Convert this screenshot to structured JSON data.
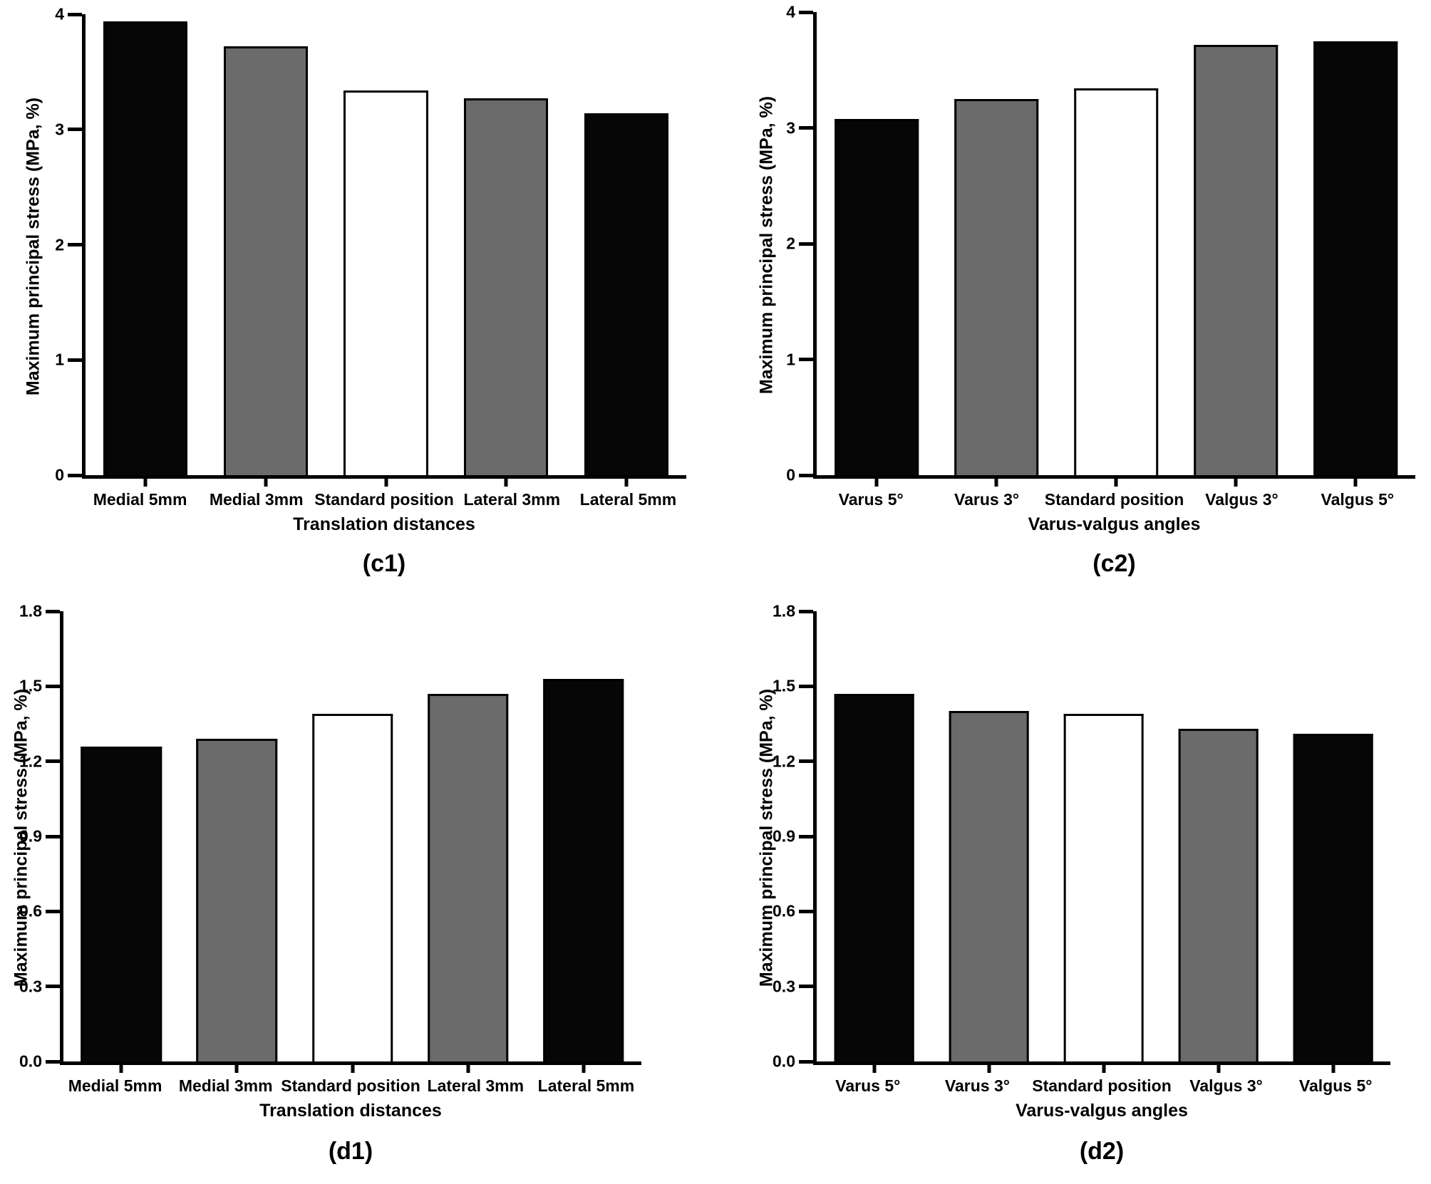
{
  "figure": {
    "background": "#ffffff",
    "bar_border_color": "#000000",
    "bar_fill_colors": {
      "black": "#060606",
      "gray": "#6b6b6b",
      "white": "#ffffff"
    }
  },
  "chart_data": [
    {
      "id": "c1",
      "type": "bar",
      "caption": "(c1)",
      "xlabel": "Translation distances",
      "ylabel": "Maximum principal stress (MPa, %)",
      "categories": [
        "Medial 5mm",
        "Medial 3mm",
        "Standard position",
        "Lateral 3mm",
        "Lateral 5mm"
      ],
      "values": [
        3.94,
        3.72,
        3.34,
        3.27,
        3.14
      ],
      "bar_fills": [
        "black",
        "gray",
        "white",
        "gray",
        "black"
      ],
      "ylim": [
        0,
        4
      ],
      "yticks": [
        0,
        1,
        2,
        3,
        4
      ],
      "ytick_labels": [
        "0",
        "1",
        "2",
        "3",
        "4"
      ],
      "grid": false,
      "legend": null
    },
    {
      "id": "c2",
      "type": "bar",
      "caption": "(c2)",
      "xlabel": "Varus-valgus angles",
      "ylabel": "Maximum principal stress (MPa, %)",
      "categories": [
        "Varus 5°",
        "Varus 3°",
        "Standard position",
        "Valgus 3°",
        "Valgus 5°"
      ],
      "values": [
        3.08,
        3.25,
        3.34,
        3.72,
        3.75
      ],
      "bar_fills": [
        "black",
        "gray",
        "white",
        "gray",
        "black"
      ],
      "ylim": [
        0,
        4
      ],
      "yticks": [
        0,
        1,
        2,
        3,
        4
      ],
      "ytick_labels": [
        "0",
        "1",
        "2",
        "3",
        "4"
      ],
      "grid": false,
      "legend": null
    },
    {
      "id": "d1",
      "type": "bar",
      "caption": "(d1)",
      "xlabel": "Translation distances",
      "ylabel": "Maximum principal stress (MPa, %)",
      "categories": [
        "Medial 5mm",
        "Medial 3mm",
        "Standard position",
        "Lateral 3mm",
        "Lateral 5mm"
      ],
      "values": [
        1.26,
        1.29,
        1.39,
        1.47,
        1.53
      ],
      "bar_fills": [
        "black",
        "gray",
        "white",
        "gray",
        "black"
      ],
      "ylim": [
        0,
        1.8
      ],
      "yticks": [
        0,
        0.3,
        0.6,
        0.9,
        1.2,
        1.5,
        1.8
      ],
      "ytick_labels": [
        "0.0",
        "0.3",
        "0.6",
        "0.9",
        "1.2",
        "1.5",
        "1.8"
      ],
      "grid": false,
      "legend": null
    },
    {
      "id": "d2",
      "type": "bar",
      "caption": "(d2)",
      "xlabel": "Varus-valgus angles",
      "ylabel": "Maximum principal stress (MPa, %)",
      "categories": [
        "Varus 5°",
        "Varus 3°",
        "Standard position",
        "Valgus 3°",
        "Valgus 5°"
      ],
      "values": [
        1.47,
        1.4,
        1.39,
        1.33,
        1.31
      ],
      "bar_fills": [
        "black",
        "gray",
        "white",
        "gray",
        "black"
      ],
      "ylim": [
        0,
        1.8
      ],
      "yticks": [
        0,
        0.3,
        0.6,
        0.9,
        1.2,
        1.5,
        1.8
      ],
      "ytick_labels": [
        "0.0",
        "0.3",
        "0.6",
        "0.9",
        "1.2",
        "1.5",
        "1.8"
      ],
      "grid": false,
      "legend": null
    }
  ]
}
